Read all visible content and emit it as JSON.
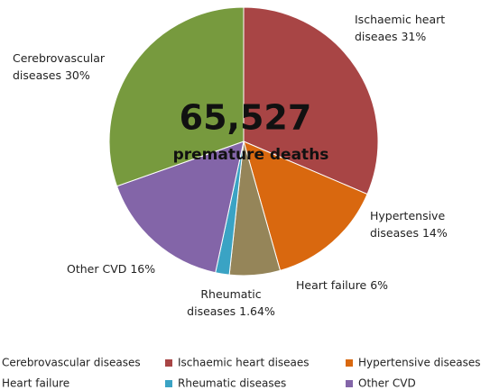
{
  "chart_data": {
    "type": "pie",
    "categories": [
      "Ischaemic heart diseaes",
      "Hypertensive diseases",
      "Heart failure",
      "Rheumatic diseases",
      "Other CVD",
      "Cerebrovascular diseases"
    ],
    "values": [
      31,
      14,
      6,
      1.64,
      16,
      30
    ],
    "value_labels": [
      "Ischaemic heart diseaes 31%",
      "Hypertensive diseases 14%",
      "Heart failure 6%",
      "Rheumatic diseases 1.64%",
      "Other CVD 16%",
      "Cerebrovascular diseases 30%"
    ],
    "colors": [
      "#a84545",
      "#d9680f",
      "#958559",
      "#3aa3c4",
      "#8365a8",
      "#779a3e"
    ],
    "annotations": [
      "65,527",
      "premature deaths"
    ],
    "legend_order": [
      5,
      0,
      1,
      2,
      3,
      4
    ]
  }
}
